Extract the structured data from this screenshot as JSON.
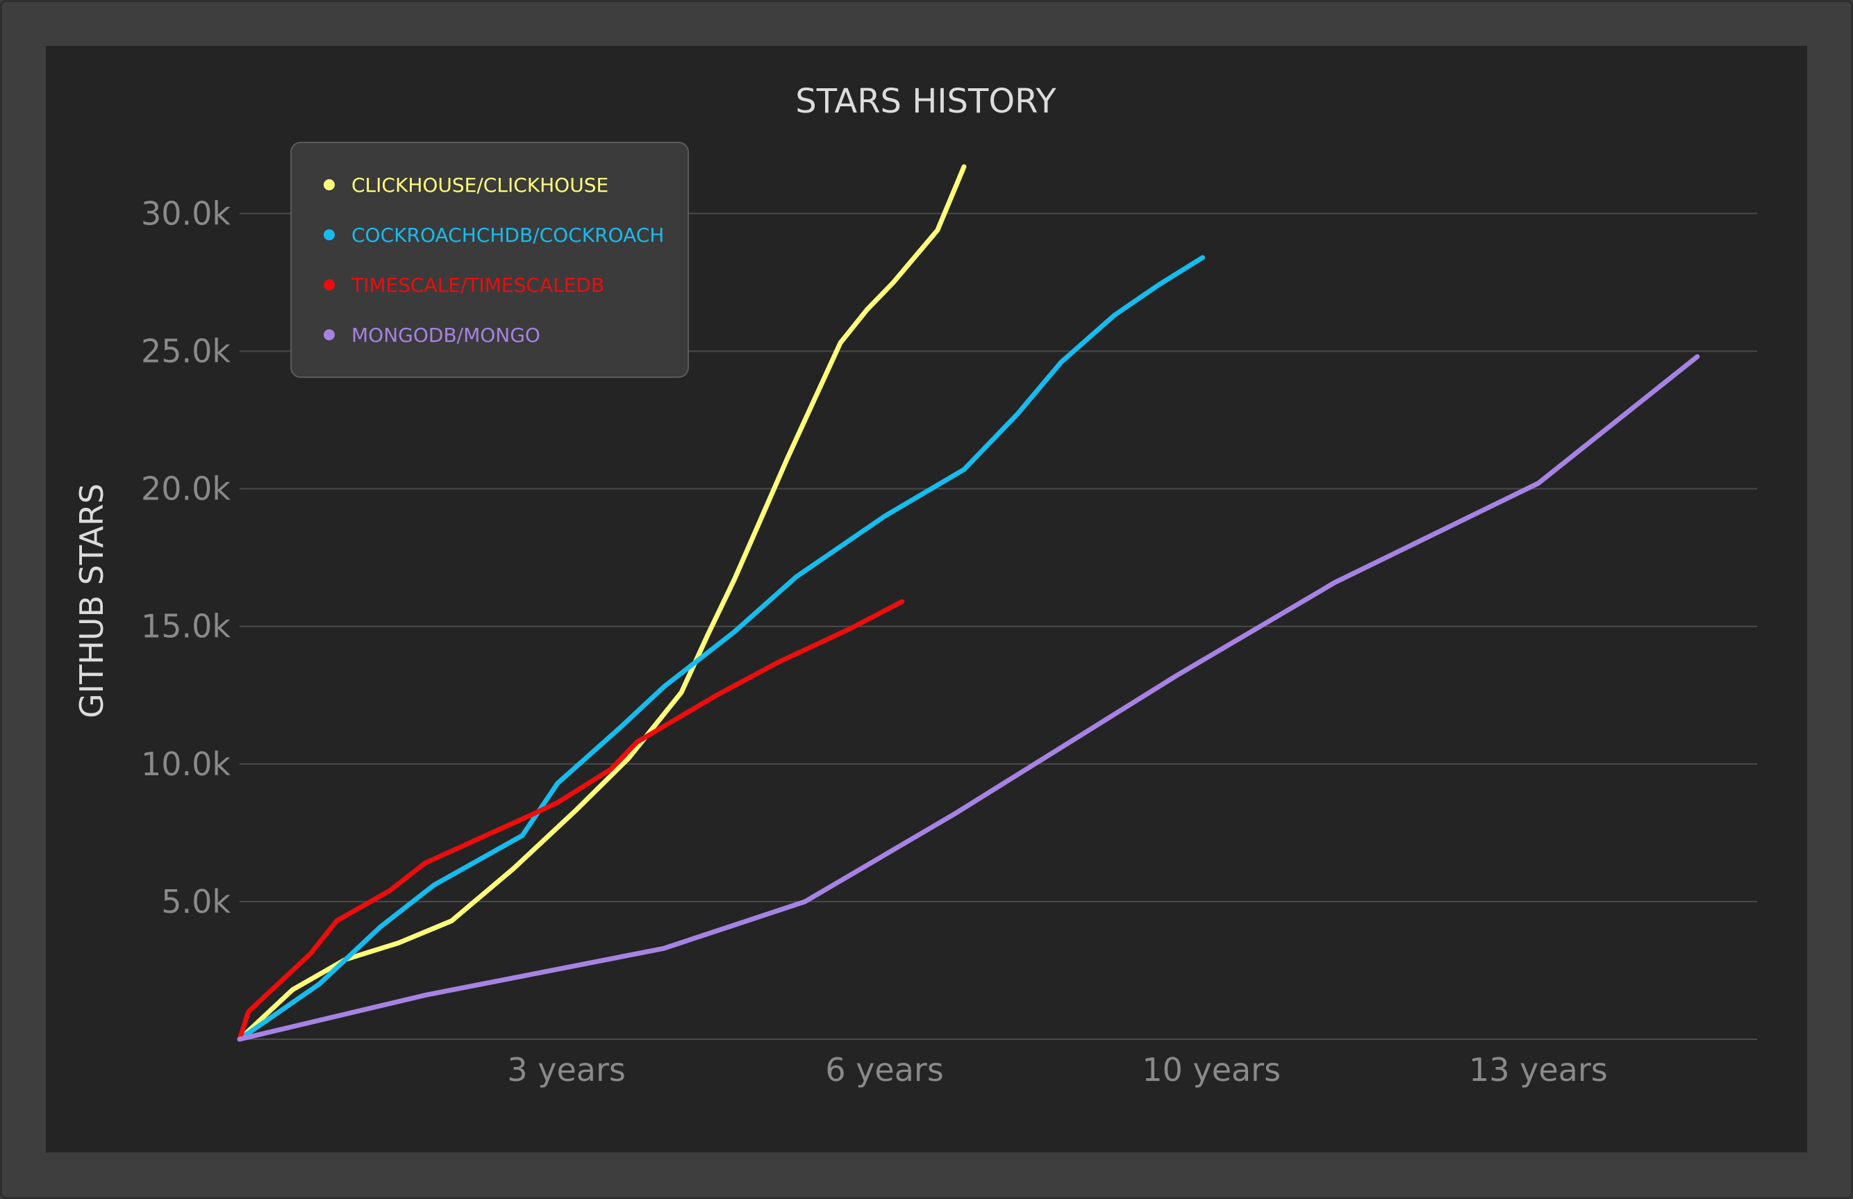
{
  "chart_data": {
    "type": "line",
    "title": "STARS HISTORY",
    "ylabel": "GITHUB STARS",
    "xlabel": "",
    "ylim": [
      0,
      32000
    ],
    "xlim": [
      0,
      16.5
    ],
    "y_ticks": [
      {
        "value": 5000,
        "label": "5.0k"
      },
      {
        "value": 10000,
        "label": "10.0k"
      },
      {
        "value": 15000,
        "label": "15.0k"
      },
      {
        "value": 20000,
        "label": "20.0k"
      },
      {
        "value": 25000,
        "label": "25.0k"
      },
      {
        "value": 30000,
        "label": "30.0k"
      }
    ],
    "x_ticks": [
      {
        "value": 3.7,
        "label": "3 years"
      },
      {
        "value": 7.3,
        "label": "6 years"
      },
      {
        "value": 11.0,
        "label": "10 years"
      },
      {
        "value": 14.7,
        "label": "13 years"
      }
    ],
    "grid": true,
    "legend_position": "top-left",
    "series": [
      {
        "name": "CLICKHOUSE/CLICKHOUSE",
        "color": "#ffff7a",
        "x": [
          0,
          0.6,
          1.2,
          1.8,
          2.4,
          3.1,
          3.8,
          4.4,
          5.0,
          5.3,
          5.6,
          5.9,
          6.2,
          6.5,
          6.8,
          7.1,
          7.4,
          7.9,
          8.2
        ],
        "y": [
          0,
          1800,
          2900,
          3500,
          4300,
          6200,
          8300,
          10200,
          12600,
          14700,
          16700,
          18900,
          21100,
          23200,
          25300,
          26500,
          27500,
          29400,
          31700
        ]
      },
      {
        "name": "COCKROACHCHDB/COCKROACH",
        "color": "#16bcee",
        "x": [
          0,
          0.9,
          1.6,
          2.2,
          3.2,
          3.6,
          4.3,
          4.8,
          5.6,
          6.3,
          7.3,
          8.2,
          8.8,
          9.3,
          9.9,
          10.4,
          10.9
        ],
        "y": [
          0,
          2000,
          4100,
          5600,
          7400,
          9300,
          11300,
          12800,
          14800,
          16800,
          19000,
          20700,
          22700,
          24600,
          26300,
          27400,
          28400
        ]
      },
      {
        "name": "TIMESCALE/TIMESCALEDB",
        "color": "#ec0d0d",
        "x": [
          0,
          0.1,
          0.4,
          0.8,
          1.1,
          1.7,
          2.1,
          3.2,
          3.6,
          4.2,
          4.5,
          5.4,
          6.1,
          6.9,
          7.5
        ],
        "y": [
          0,
          1000,
          1900,
          3100,
          4300,
          5400,
          6400,
          8000,
          8600,
          9800,
          10800,
          12500,
          13700,
          14900,
          15900
        ]
      },
      {
        "name": "MONGODB/MONGO",
        "color": "#a683e3",
        "x": [
          0,
          2.1,
          4.8,
          6.4,
          8.1,
          10.6,
          12.4,
          14.7,
          16.5
        ],
        "y": [
          0,
          1600,
          3300,
          5000,
          8200,
          13200,
          16600,
          20200,
          24800
        ]
      }
    ]
  }
}
